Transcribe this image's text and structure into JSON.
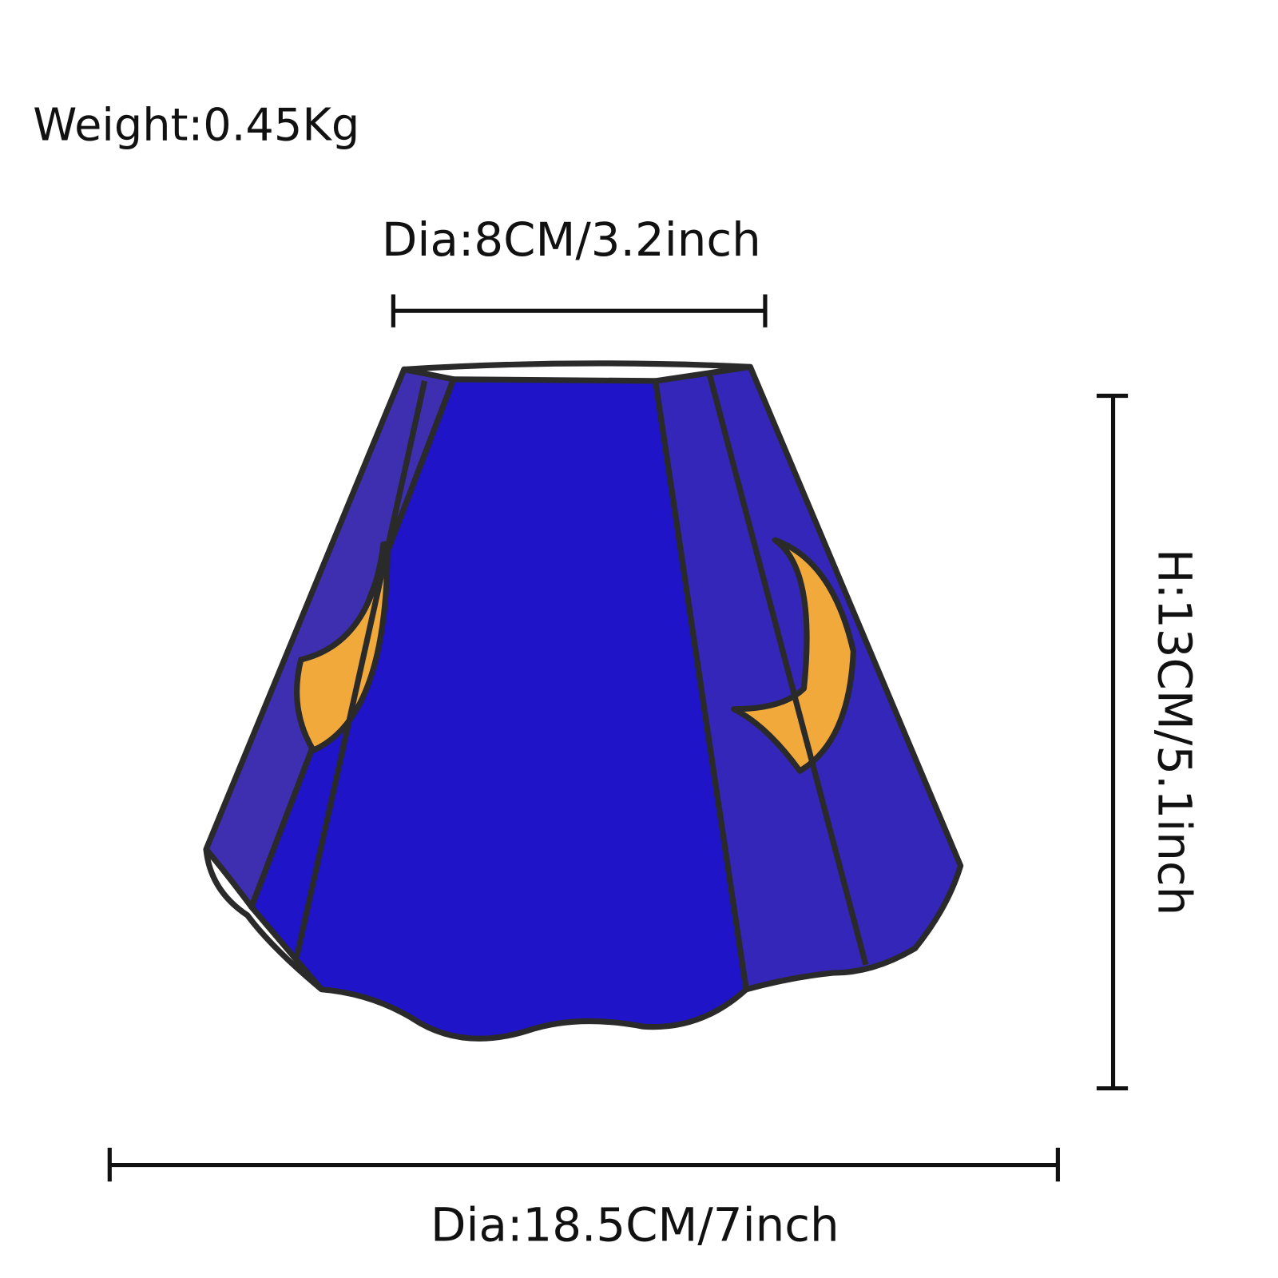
{
  "labels": {
    "weight": "Weight:0.45Kg",
    "top_diameter": "Dia:8CM/3.2inch",
    "height": "H:13CM/5.1inch",
    "bottom_diameter": "Dia:18.5CM/7inch"
  }
}
